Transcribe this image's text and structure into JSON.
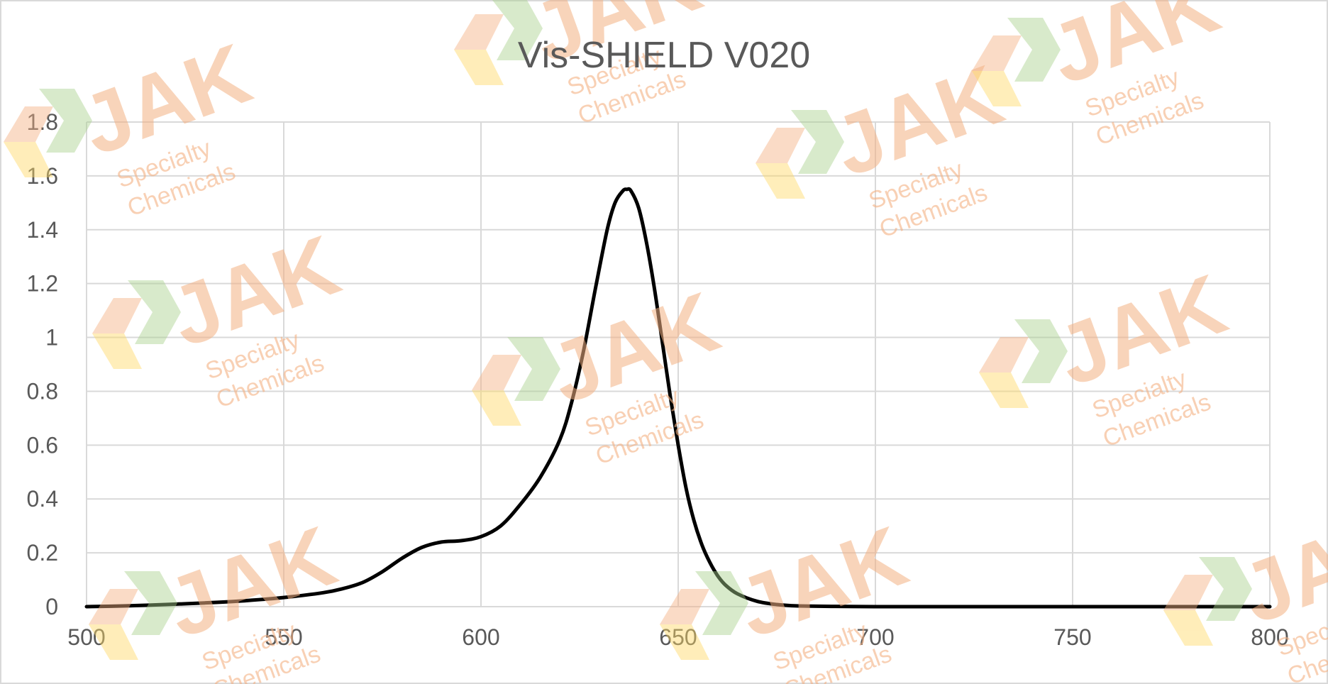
{
  "chart_data": {
    "type": "line",
    "title": "Vis-SHIELD V020",
    "xlabel": "",
    "ylabel": "",
    "xlim": [
      500,
      800
    ],
    "ylim": [
      0,
      1.8
    ],
    "x_ticks": [
      500,
      550,
      600,
      650,
      700,
      750,
      800
    ],
    "y_ticks": [
      0,
      0.2,
      0.4,
      0.6,
      0.8,
      1,
      1.2,
      1.4,
      1.6,
      1.8
    ],
    "grid": true,
    "legend": "none",
    "series": [
      {
        "color": "#000000",
        "x": [
          500,
          510,
          520,
          530,
          540,
          550,
          560,
          565,
          570,
          575,
          580,
          585,
          590,
          595,
          600,
          605,
          610,
          615,
          620,
          623,
          626,
          629,
          632,
          634,
          636,
          637,
          638,
          640,
          642,
          644,
          646,
          648,
          650,
          652,
          654,
          656,
          658,
          660,
          662,
          665,
          670,
          675,
          680,
          690,
          700,
          720,
          750,
          800
        ],
        "y": [
          0,
          0.003,
          0.008,
          0.014,
          0.022,
          0.034,
          0.052,
          0.067,
          0.09,
          0.13,
          0.18,
          0.22,
          0.24,
          0.245,
          0.26,
          0.3,
          0.38,
          0.48,
          0.62,
          0.76,
          0.95,
          1.18,
          1.4,
          1.5,
          1.545,
          1.55,
          1.545,
          1.48,
          1.35,
          1.18,
          0.98,
          0.78,
          0.6,
          0.44,
          0.32,
          0.23,
          0.165,
          0.115,
          0.08,
          0.048,
          0.02,
          0.008,
          0.003,
          0.001,
          0,
          0,
          0,
          0
        ]
      }
    ],
    "watermark": {
      "brand": "JAK",
      "line1": "Specialty",
      "line2": "Chemicals"
    },
    "colors": {
      "watermark_orange": "#f4b183",
      "watermark_green": "#a9d18e",
      "watermark_yellow": "#ffd966"
    }
  }
}
